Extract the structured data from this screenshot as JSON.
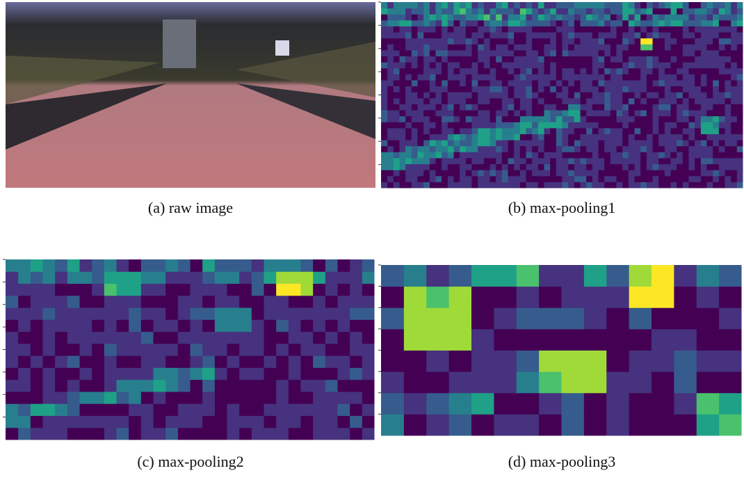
{
  "figure": {
    "panels": [
      {
        "caption": "(a) raw image"
      },
      {
        "caption": "(b) max-pooling1"
      },
      {
        "caption": "(c) max-pooling2"
      },
      {
        "caption": "(d) max-pooling3"
      }
    ]
  }
}
